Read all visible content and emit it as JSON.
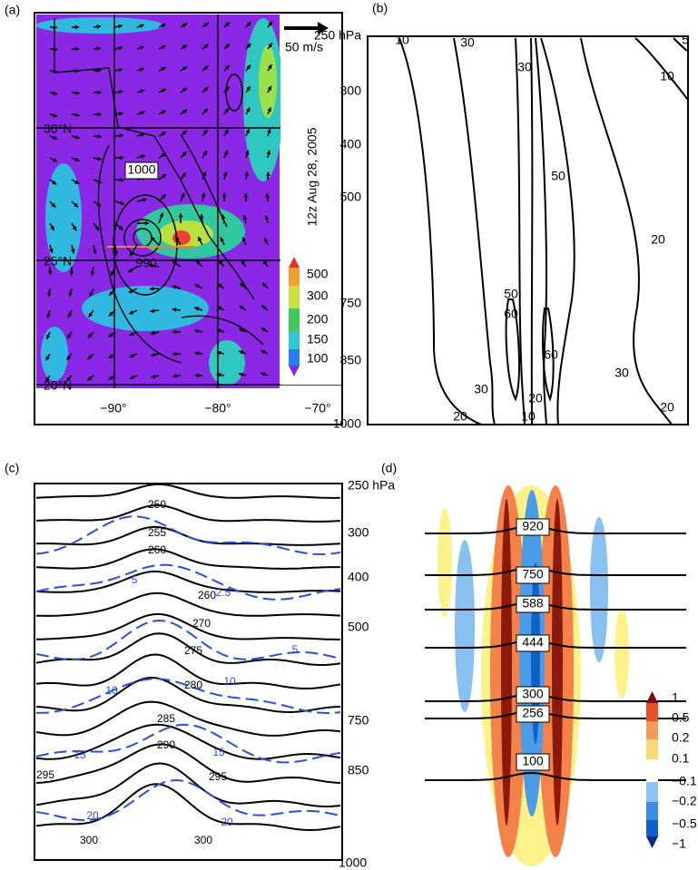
{
  "panels": [
    {
      "label": "(a)",
      "wind_scale": "50 m/s",
      "time": "12z Aug 28, 2005",
      "lat_labels": [
        "30°N",
        "25°N",
        "20°N"
      ],
      "lon_labels": [
        "−90°",
        "−80°",
        "−70°"
      ],
      "colorbar_labels": [
        "500",
        "300",
        "200",
        "150",
        "100"
      ],
      "contour_labels": [
        "1000",
        "990"
      ]
    },
    {
      "label": "(b)",
      "pressure_labels": [
        "250 hPa",
        "300",
        "400",
        "500",
        "750",
        "850",
        "1000"
      ],
      "contour_labels": [
        "10",
        "30",
        "30",
        "5",
        "10",
        "50",
        "20",
        "50",
        "60",
        "60",
        "30",
        "30",
        "20",
        "20",
        "20",
        "10"
      ]
    },
    {
      "label": "(c)",
      "pressure_labels": [
        "250 hPa",
        "300",
        "400",
        "500",
        "750",
        "850",
        "1000"
      ],
      "theta_labels": [
        "250",
        "255",
        "260",
        "260",
        "270",
        "275",
        "280",
        "285",
        "290",
        "295",
        "295",
        "300",
        "300"
      ],
      "wind_labels": [
        "5",
        "2.5",
        "5",
        "10",
        "10",
        "15",
        "15",
        "20",
        "20"
      ]
    },
    {
      "label": "(d)",
      "contour_labels": [
        "920",
        "750",
        "588",
        "444",
        "300",
        "256",
        "100"
      ],
      "colorbar_labels": [
        "1",
        "0.5",
        "0.2",
        "0.1",
        "−0.1",
        "−0.2",
        "−0.5",
        "−1"
      ]
    }
  ]
}
